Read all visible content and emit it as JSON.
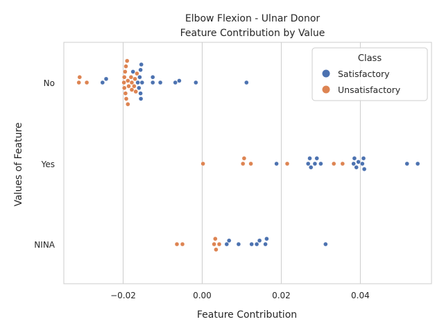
{
  "chart_data": {
    "type": "scatter",
    "subtype": "swarm",
    "title": "Elbow Flexion - Ulnar Donor",
    "subtitle": "Feature Contribution by Value",
    "xlabel": "Feature Contribution",
    "ylabel": "Values of Feature",
    "xlim": [
      -0.035,
      0.058
    ],
    "x_ticks": [
      -0.02,
      0.0,
      0.02,
      0.04
    ],
    "x_tick_labels": [
      "−0.02",
      "0.00",
      "0.02",
      "0.04"
    ],
    "categories": [
      "No",
      "Yes",
      "NINA"
    ],
    "grid": "x",
    "legend": {
      "title": "Class",
      "placement": "top-right"
    },
    "series": [
      {
        "name": "Satisfactory",
        "color": "#4c72b0",
        "points": [
          {
            "x": -0.0154,
            "category": "No"
          },
          {
            "x": -0.0156,
            "category": "No"
          },
          {
            "x": -0.016,
            "category": "No"
          },
          {
            "x": -0.0125,
            "category": "No"
          },
          {
            "x": -0.0125,
            "category": "No"
          },
          {
            "x": -0.0163,
            "category": "No"
          },
          {
            "x": -0.0152,
            "category": "No"
          },
          {
            "x": -0.0158,
            "category": "No"
          },
          {
            "x": -0.0156,
            "category": "No"
          },
          {
            "x": -0.0175,
            "category": "No"
          },
          {
            "x": -0.0155,
            "category": "No"
          },
          {
            "x": -0.0106,
            "category": "No"
          },
          {
            "x": -0.0068,
            "category": "No"
          },
          {
            "x": -0.0058,
            "category": "No"
          },
          {
            "x": -0.0016,
            "category": "No"
          },
          {
            "x": -0.0243,
            "category": "No"
          },
          {
            "x": -0.0252,
            "category": "No"
          },
          {
            "x": 0.0112,
            "category": "No"
          },
          {
            "x": 0.0188,
            "category": "Yes"
          },
          {
            "x": 0.0268,
            "category": "Yes"
          },
          {
            "x": 0.0272,
            "category": "Yes"
          },
          {
            "x": 0.0275,
            "category": "Yes"
          },
          {
            "x": 0.0285,
            "category": "Yes"
          },
          {
            "x": 0.029,
            "category": "Yes"
          },
          {
            "x": 0.03,
            "category": "Yes"
          },
          {
            "x": 0.0383,
            "category": "Yes"
          },
          {
            "x": 0.0385,
            "category": "Yes"
          },
          {
            "x": 0.039,
            "category": "Yes"
          },
          {
            "x": 0.0395,
            "category": "Yes"
          },
          {
            "x": 0.0405,
            "category": "Yes"
          },
          {
            "x": 0.0408,
            "category": "Yes"
          },
          {
            "x": 0.041,
            "category": "Yes"
          },
          {
            "x": 0.0518,
            "category": "Yes"
          },
          {
            "x": 0.0545,
            "category": "Yes"
          },
          {
            "x": 0.0062,
            "category": "NINA"
          },
          {
            "x": 0.0068,
            "category": "NINA"
          },
          {
            "x": 0.0092,
            "category": "NINA"
          },
          {
            "x": 0.0125,
            "category": "NINA"
          },
          {
            "x": 0.0138,
            "category": "NINA"
          },
          {
            "x": 0.0145,
            "category": "NINA"
          },
          {
            "x": 0.016,
            "category": "NINA"
          },
          {
            "x": 0.0163,
            "category": "NINA"
          },
          {
            "x": 0.0312,
            "category": "NINA"
          }
        ]
      },
      {
        "name": "Unsatisfactory",
        "color": "#dd8452",
        "points": [
          {
            "x": -0.0188,
            "category": "No"
          },
          {
            "x": -0.019,
            "category": "No"
          },
          {
            "x": -0.0165,
            "category": "No"
          },
          {
            "x": -0.0193,
            "category": "No"
          },
          {
            "x": -0.0172,
            "category": "No"
          },
          {
            "x": -0.0195,
            "category": "No"
          },
          {
            "x": -0.0178,
            "category": "No"
          },
          {
            "x": -0.0197,
            "category": "No"
          },
          {
            "x": -0.0168,
            "category": "No"
          },
          {
            "x": -0.0186,
            "category": "No"
          },
          {
            "x": -0.0198,
            "category": "No"
          },
          {
            "x": -0.0178,
            "category": "No"
          },
          {
            "x": -0.0197,
            "category": "No"
          },
          {
            "x": -0.018,
            "category": "No"
          },
          {
            "x": -0.0194,
            "category": "No"
          },
          {
            "x": -0.017,
            "category": "No"
          },
          {
            "x": -0.0192,
            "category": "No"
          },
          {
            "x": -0.0188,
            "category": "No"
          },
          {
            "x": -0.031,
            "category": "No"
          },
          {
            "x": -0.0312,
            "category": "No"
          },
          {
            "x": -0.0292,
            "category": "No"
          },
          {
            "x": 0.0002,
            "category": "Yes"
          },
          {
            "x": 0.0103,
            "category": "Yes"
          },
          {
            "x": 0.0106,
            "category": "Yes"
          },
          {
            "x": 0.0123,
            "category": "Yes"
          },
          {
            "x": 0.0215,
            "category": "Yes"
          },
          {
            "x": 0.0333,
            "category": "Yes"
          },
          {
            "x": 0.0355,
            "category": "Yes"
          },
          {
            "x": -0.0064,
            "category": "NINA"
          },
          {
            "x": -0.005,
            "category": "NINA"
          },
          {
            "x": 0.003,
            "category": "NINA"
          },
          {
            "x": 0.0033,
            "category": "NINA"
          },
          {
            "x": 0.0035,
            "category": "NINA"
          },
          {
            "x": 0.0043,
            "category": "NINA"
          }
        ]
      }
    ]
  }
}
